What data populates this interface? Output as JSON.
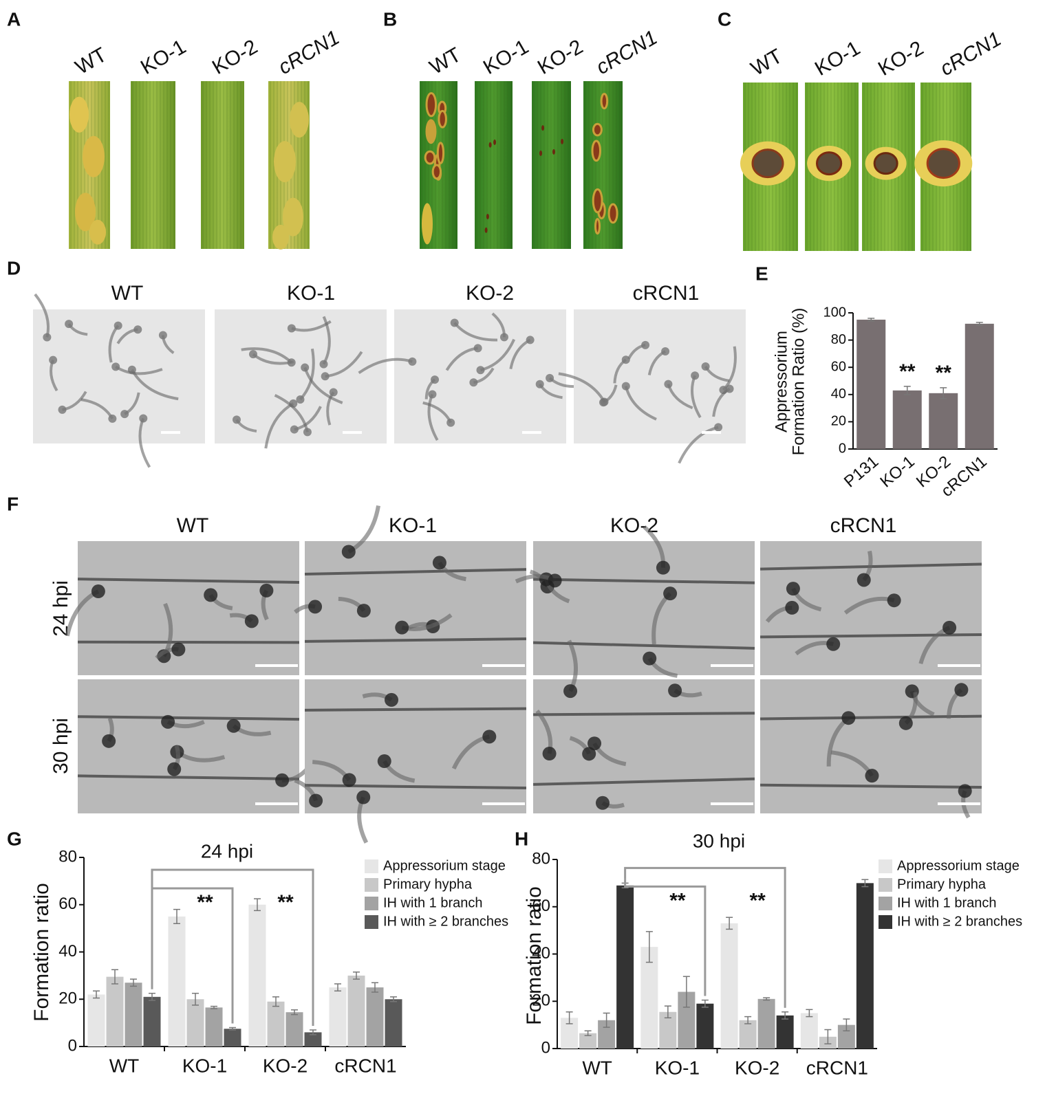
{
  "panels": {
    "A": {
      "letter": "A",
      "labels": [
        "WT",
        "KO-1",
        "KO-2",
        "cRCN1"
      ]
    },
    "B": {
      "letter": "B",
      "labels": [
        "WT",
        "KO-1",
        "KO-2",
        "cRCN1"
      ]
    },
    "C": {
      "letter": "C",
      "labels": [
        "WT",
        "KO-1",
        "KO-2",
        "cRCN1"
      ]
    },
    "D": {
      "letter": "D",
      "labels": [
        "WT",
        "KO-1",
        "KO-2",
        "cRCN1"
      ]
    },
    "E": {
      "letter": "E"
    },
    "F": {
      "letter": "F",
      "labels": [
        "WT",
        "KO-1",
        "KO-2",
        "cRCN1"
      ],
      "rows": [
        "24 hpi",
        "30 hpi"
      ]
    },
    "G": {
      "letter": "G"
    },
    "H": {
      "letter": "H"
    }
  },
  "chart_data": [
    {
      "type": "bar",
      "ylabel": [
        "Appressorium",
        "Formation Ratio (%)"
      ],
      "categories": [
        "P131",
        "KO-1",
        "KO-2",
        "cRCN1"
      ],
      "values": [
        95,
        43,
        41,
        92
      ],
      "errors": [
        1,
        3,
        4,
        1
      ],
      "color": "#786f71",
      "ylim": [
        0,
        100
      ],
      "yticks": [
        0,
        20,
        40,
        60,
        80,
        100
      ],
      "annotations": [
        "**",
        "**"
      ]
    },
    {
      "type": "grouped-bar",
      "title": "24 hpi",
      "ylabel": "Formation ratio",
      "categories": [
        "WT",
        "KO-1",
        "KO-2",
        "cRCN1"
      ],
      "series": [
        {
          "name": "Appressorium stage",
          "color": "#e6e6e6",
          "values": [
            22,
            55,
            60,
            25
          ],
          "errors": [
            1.5,
            3,
            2.5,
            1.5
          ]
        },
        {
          "name": "Primary hypha",
          "color": "#c8c8c8",
          "values": [
            29.5,
            20,
            19,
            30
          ],
          "errors": [
            3,
            2.5,
            2,
            1.5
          ]
        },
        {
          "name": "IH with 1 branch",
          "color": "#a3a3a3",
          "values": [
            27,
            16.5,
            14.5,
            25
          ],
          "errors": [
            1.5,
            0.5,
            1,
            2
          ]
        },
        {
          "name": "IH with ≥ 2 branches",
          "color": "#595959",
          "values": [
            21,
            7.5,
            6,
            20
          ],
          "errors": [
            1.5,
            0.5,
            1,
            1
          ]
        }
      ],
      "ylim": [
        0,
        80
      ],
      "yticks": [
        0,
        20,
        40,
        60,
        80
      ],
      "annotations": [
        "**",
        "**"
      ],
      "legend": "upper right"
    },
    {
      "type": "grouped-bar",
      "title": "30 hpi",
      "ylabel": "Formation ratio",
      "categories": [
        "WT",
        "KO-1",
        "KO-2",
        "cRCN1"
      ],
      "series": [
        {
          "name": "Appressorium stage",
          "color": "#e6e6e6",
          "values": [
            13,
            43,
            53,
            15
          ],
          "errors": [
            2.5,
            6.5,
            2.5,
            1.5
          ]
        },
        {
          "name": "Primary hypha",
          "color": "#c8c8c8",
          "values": [
            6.5,
            15.5,
            12,
            5
          ],
          "errors": [
            1,
            2.5,
            1.5,
            3
          ]
        },
        {
          "name": "IH with 1 branch",
          "color": "#a3a3a3",
          "values": [
            12,
            24,
            21,
            10
          ],
          "errors": [
            3,
            6.5,
            0.5,
            2.5
          ]
        },
        {
          "name": "IH with ≥ 2 branches",
          "color": "#333333",
          "values": [
            69,
            19,
            14,
            70
          ],
          "errors": [
            1,
            1.5,
            1.5,
            1.5
          ]
        }
      ],
      "ylim": [
        0,
        80
      ],
      "yticks": [
        0,
        20,
        40,
        60,
        80
      ],
      "annotations": [
        "**",
        "**"
      ],
      "legend": "upper right"
    }
  ]
}
